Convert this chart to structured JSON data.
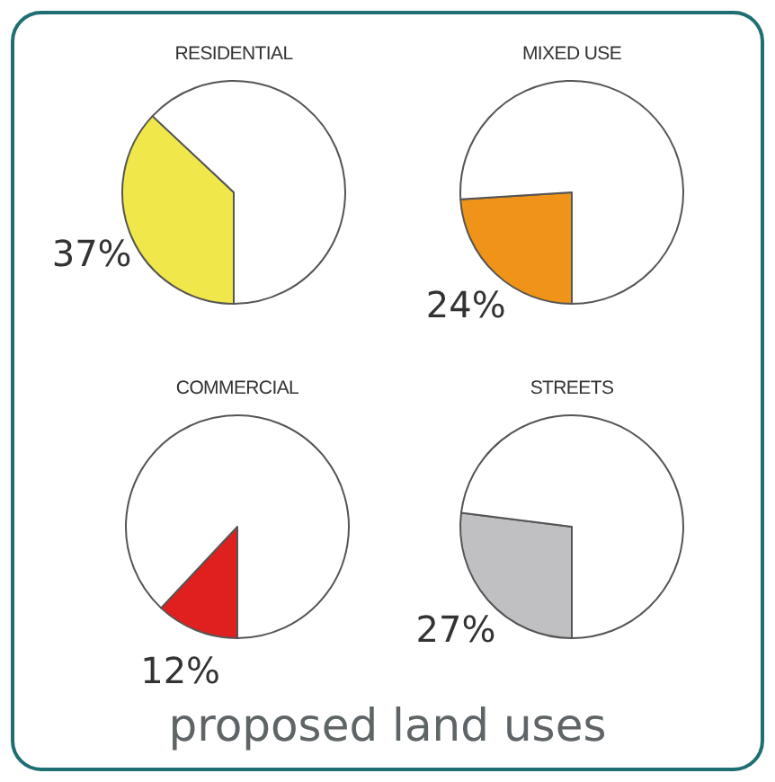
{
  "chart_data": [
    {
      "type": "pie",
      "title": "RESIDENTIAL",
      "categories": [
        null,
        null
      ],
      "values": [
        37,
        63
      ],
      "colors": [
        "#f0e84a",
        "#ffffff"
      ],
      "value_labels": [
        "37%",
        null
      ]
    },
    {
      "type": "pie",
      "title": "MIXED USE",
      "categories": [
        null,
        null
      ],
      "values": [
        24,
        76
      ],
      "colors": [
        "#ef9418",
        "#ffffff"
      ],
      "value_labels": [
        "24%",
        null
      ]
    },
    {
      "type": "pie",
      "title": "COMMERCIAL",
      "categories": [
        null,
        null
      ],
      "values": [
        12,
        88
      ],
      "colors": [
        "#e0201e",
        "#ffffff"
      ],
      "value_labels": [
        "12%",
        null
      ]
    },
    {
      "type": "pie",
      "title": "STREETS",
      "categories": [
        null,
        null
      ],
      "values": [
        27,
        73
      ],
      "colors": [
        "#c0c0c2",
        "#ffffff"
      ],
      "value_labels": [
        "27%",
        null
      ]
    },
    {
      "type": "other",
      "title": "proposed land uses"
    }
  ]
}
